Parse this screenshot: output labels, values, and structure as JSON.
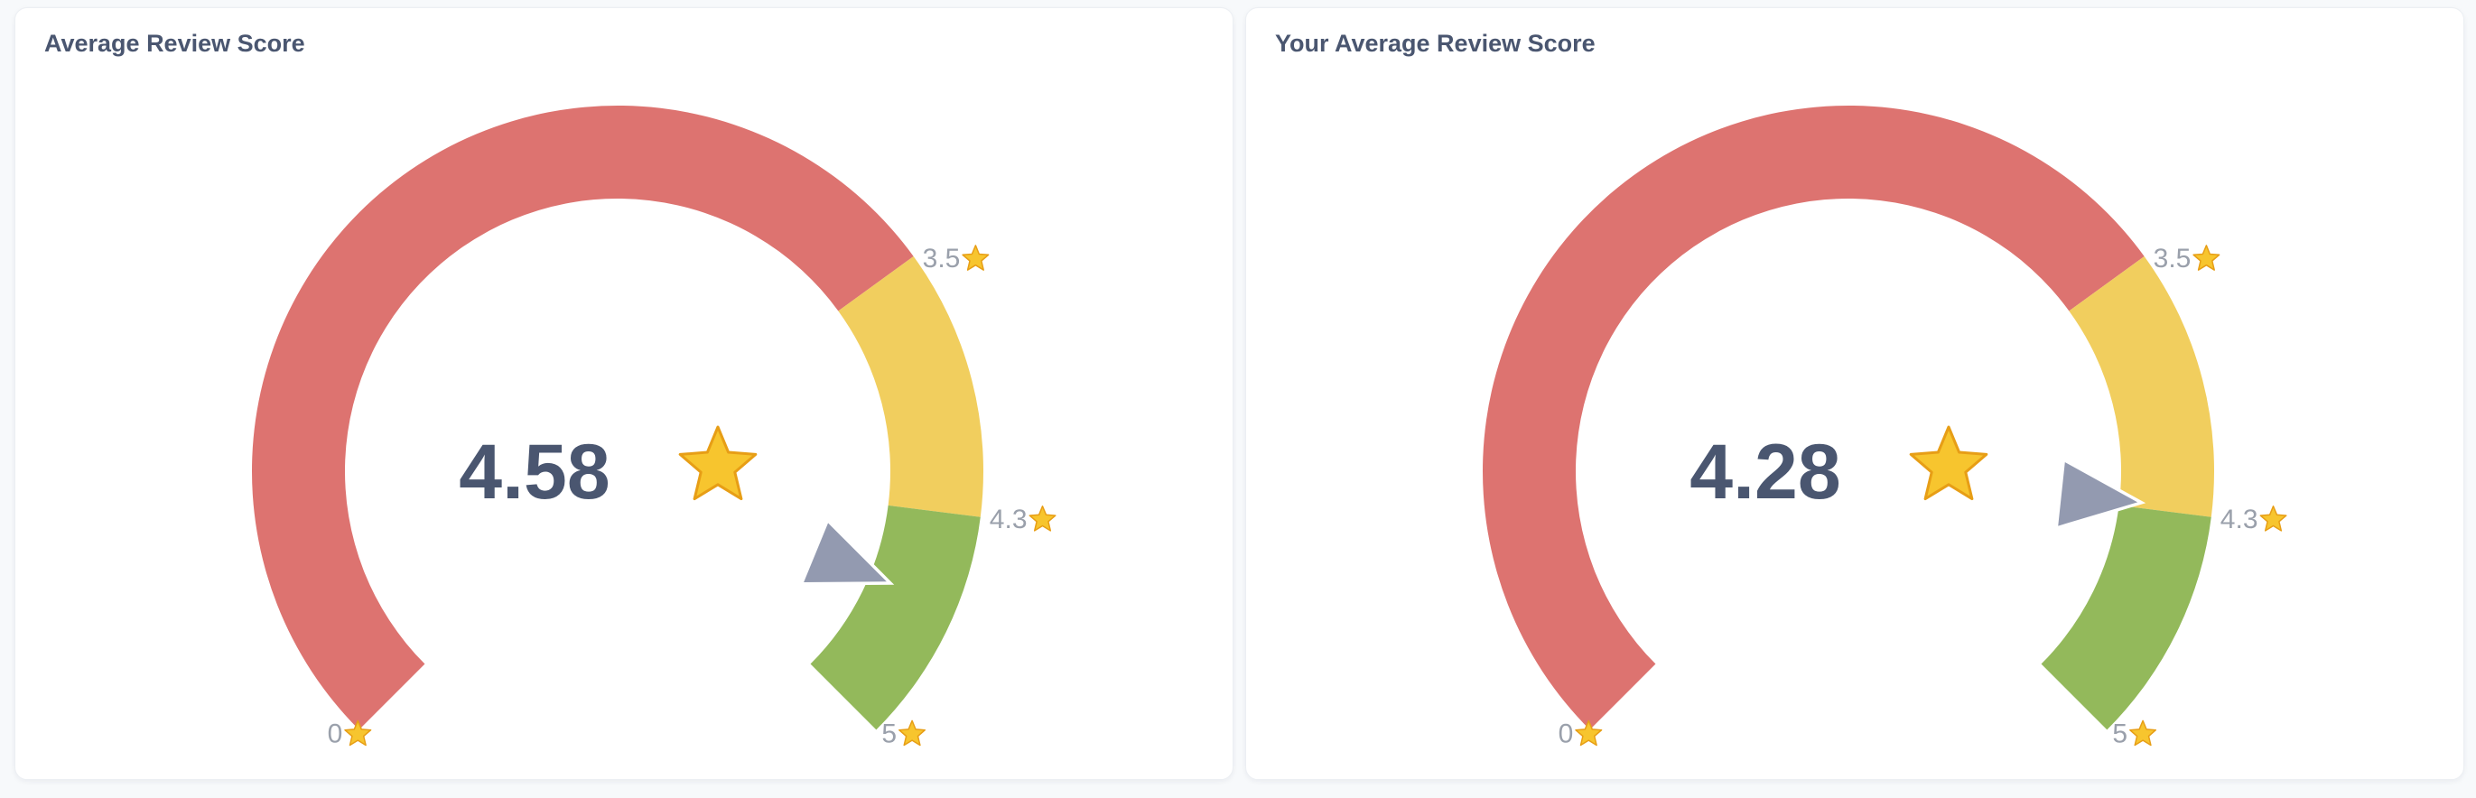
{
  "colors": {
    "red": "#dd7370",
    "yellow": "#f1ce5e",
    "green": "#93b95b",
    "text": "#4a5670",
    "label": "#9aa0ab",
    "needle": "#939ab0",
    "star": "#f7c52e"
  },
  "gauges": [
    {
      "title": "Average Review Score",
      "value_label": "4.58",
      "star_icon": "star-icon"
    },
    {
      "title": "Your Average Review Score",
      "value_label": "4.28",
      "star_icon": "star-icon"
    }
  ],
  "chart_data": [
    {
      "type": "gauge",
      "title": "Average Review Score",
      "value": 4.58,
      "min": 0,
      "max": 5,
      "segments": [
        {
          "from": 0,
          "to": 3.5,
          "color": "#dd7370"
        },
        {
          "from": 3.5,
          "to": 4.3,
          "color": "#f1ce5e"
        },
        {
          "from": 4.3,
          "to": 5,
          "color": "#93b95b"
        }
      ],
      "ticks": [
        {
          "value": 0,
          "label": "0"
        },
        {
          "value": 3.5,
          "label": "3.5"
        },
        {
          "value": 4.3,
          "label": "4.3"
        },
        {
          "value": 5,
          "label": "5"
        }
      ]
    },
    {
      "type": "gauge",
      "title": "Your Average Review Score",
      "value": 4.28,
      "min": 0,
      "max": 5,
      "segments": [
        {
          "from": 0,
          "to": 3.5,
          "color": "#dd7370"
        },
        {
          "from": 3.5,
          "to": 4.3,
          "color": "#f1ce5e"
        },
        {
          "from": 4.3,
          "to": 5,
          "color": "#93b95b"
        }
      ],
      "ticks": [
        {
          "value": 0,
          "label": "0"
        },
        {
          "value": 3.5,
          "label": "3.5"
        },
        {
          "value": 4.3,
          "label": "4.3"
        },
        {
          "value": 5,
          "label": "5"
        }
      ]
    }
  ]
}
